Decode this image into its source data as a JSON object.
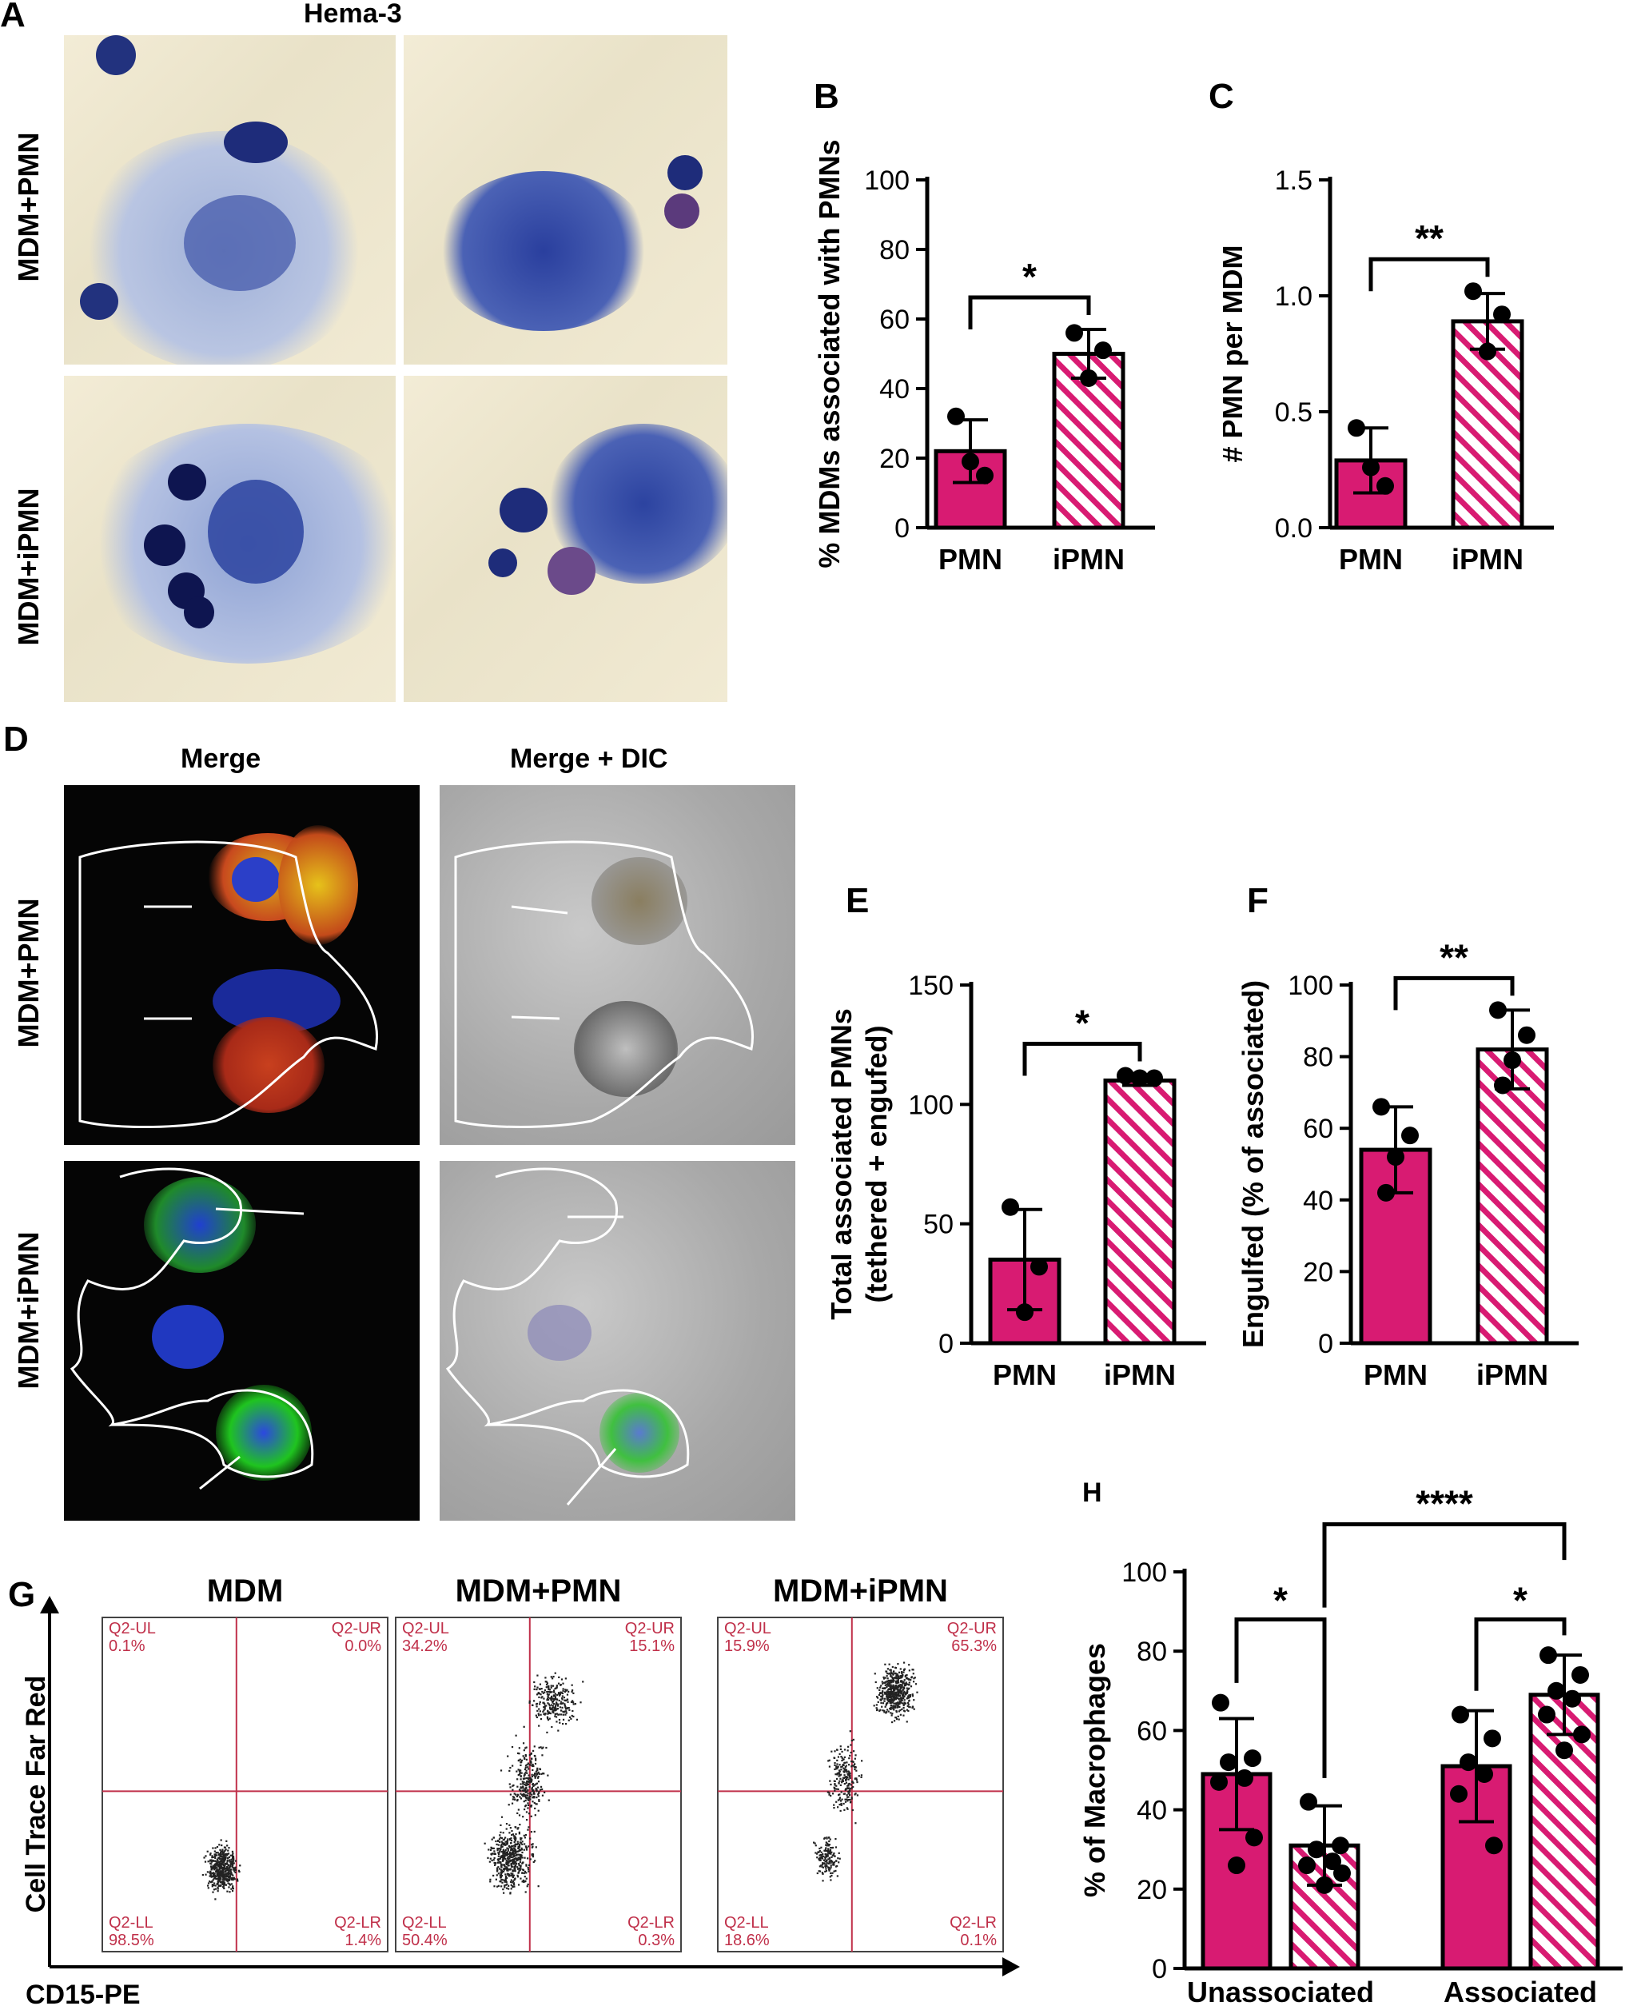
{
  "panel_letters": {
    "a": "A",
    "b": "B",
    "c": "C",
    "d": "D",
    "e": "E",
    "f": "F",
    "g": "G",
    "h": "H"
  },
  "panelA": {
    "header": "Hema-3",
    "rows": [
      "MDM+PMN",
      "MDM+iPMN"
    ]
  },
  "panelD": {
    "headers": [
      "Merge",
      "Merge + DIC"
    ],
    "rows": [
      "MDM+PMN",
      "MDM+iPMN"
    ]
  },
  "panelG": {
    "titles": [
      "MDM",
      "MDM+PMN",
      "MDM+iPMN"
    ],
    "ylabel": "Cell Trace Far Red",
    "xlabel": "CD15-PE",
    "plots": [
      {
        "UL": "Q2-UL\n0.1%",
        "UR": "Q2-UR\n0.0%",
        "LL": "Q2-LL\n98.5%",
        "LR": "Q2-LR\n1.4%"
      },
      {
        "UL": "Q2-UL\n34.2%",
        "UR": "Q2-UR\n15.1%",
        "LL": "Q2-LL\n50.4%",
        "LR": "Q2-LR\n0.3%"
      },
      {
        "UL": "Q2-UL\n15.9%",
        "UR": "Q2-UR\n65.3%",
        "LL": "Q2-LL\n18.6%",
        "LR": "Q2-LR\n0.1%"
      }
    ]
  },
  "colors": {
    "magenta": "#d81b72",
    "line": "#000000",
    "gate": "#c0304a"
  },
  "chart_data": [
    {
      "id": "B",
      "type": "bar",
      "categories": [
        "PMN",
        "iPMN"
      ],
      "values": [
        22,
        50
      ],
      "error": [
        9,
        7
      ],
      "points": [
        [
          32,
          15,
          19
        ],
        [
          56,
          51,
          43
        ]
      ],
      "ylabel": "% MDMs associated with PMNs",
      "ylim": [
        0,
        100
      ],
      "yticks": [
        0,
        20,
        40,
        60,
        80,
        100
      ],
      "significance": "*"
    },
    {
      "id": "C",
      "type": "bar",
      "categories": [
        "PMN",
        "iPMN"
      ],
      "values": [
        0.29,
        0.89
      ],
      "error": [
        0.14,
        0.12
      ],
      "points": [
        [
          0.43,
          0.18,
          0.26
        ],
        [
          1.02,
          0.92,
          0.76
        ]
      ],
      "ylabel": "# PMN per MDM",
      "ylim": [
        0,
        1.5
      ],
      "yticks": [
        "0.0",
        "0.5",
        "1.0",
        "1.5"
      ],
      "significance": "**"
    },
    {
      "id": "E",
      "type": "bar",
      "categories": [
        "PMN",
        "iPMN"
      ],
      "values": [
        35,
        110
      ],
      "error": [
        21,
        2
      ],
      "points": [
        [
          57,
          32,
          13
        ],
        [
          112,
          111,
          111
        ]
      ],
      "ylabel": "Total associated PMNs\n(tethered + engufed)",
      "ylim": [
        0,
        150
      ],
      "yticks": [
        0,
        50,
        100,
        150
      ],
      "significance": "*"
    },
    {
      "id": "F",
      "type": "bar",
      "categories": [
        "PMN",
        "iPMN"
      ],
      "values": [
        54,
        82
      ],
      "error": [
        12,
        11
      ],
      "points": [
        [
          66,
          58,
          52,
          42
        ],
        [
          93,
          86,
          79,
          72
        ]
      ],
      "ylabel": "Engulfed (% of associated)",
      "ylim": [
        0,
        100
      ],
      "yticks": [
        0,
        20,
        40,
        60,
        80,
        100
      ],
      "significance": "**"
    },
    {
      "id": "H",
      "type": "bar",
      "groups": [
        "Unassociated",
        "Associated"
      ],
      "bars": [
        {
          "group": 0,
          "style": "solid",
          "value": 49,
          "error": 14,
          "points": [
            67,
            53,
            52,
            48,
            47,
            33,
            26
          ]
        },
        {
          "group": 0,
          "style": "hatched",
          "value": 31,
          "error": 10,
          "points": [
            42,
            31,
            30,
            27,
            26,
            24,
            21
          ]
        },
        {
          "group": 1,
          "style": "solid",
          "value": 51,
          "error": 14,
          "points": [
            64,
            58,
            52,
            49,
            44,
            31
          ]
        },
        {
          "group": 1,
          "style": "hatched",
          "value": 69,
          "error": 10,
          "points": [
            79,
            74,
            70,
            68,
            64,
            59,
            55
          ]
        }
      ],
      "ylabel": "% of Macrophages",
      "ylim": [
        0,
        100
      ],
      "yticks": [
        0,
        20,
        40,
        60,
        80,
        100
      ],
      "significance": [
        "*",
        "*",
        "****"
      ]
    }
  ]
}
